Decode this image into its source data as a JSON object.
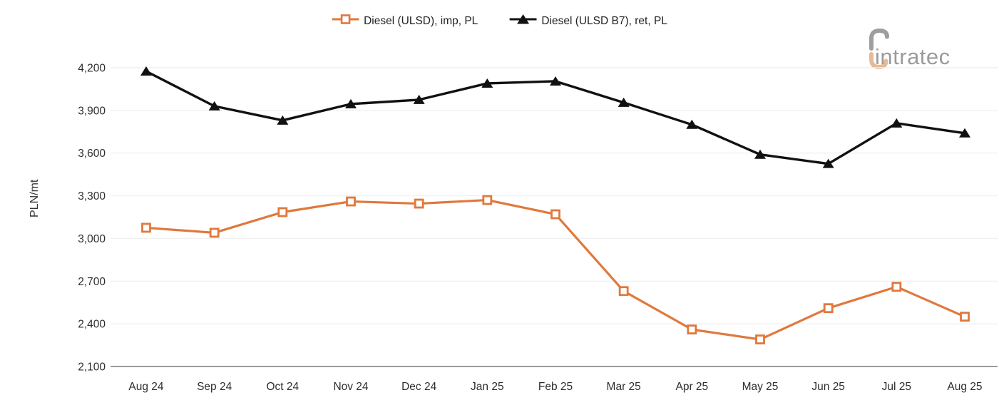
{
  "branding": {
    "logo_text": "intratec"
  },
  "chart_data": {
    "type": "line",
    "title": "",
    "ylabel": "PLN/mt",
    "xlabel": "",
    "ylim": [
      2100,
      4200
    ],
    "ytick_step": 300,
    "grid": "horizontal-light",
    "legend_position": "top-center",
    "categories": [
      "Aug 24",
      "Sep 24",
      "Oct 24",
      "Nov 24",
      "Dec 24",
      "Jan 25",
      "Feb 25",
      "Mar 25",
      "Apr 25",
      "May 25",
      "Jun 25",
      "Jul 25",
      "Aug 25"
    ],
    "series": [
      {
        "name": "Diesel (ULSD), imp, PL",
        "color": "#E0783C",
        "marker": "square-open",
        "values": [
          3075,
          3040,
          3185,
          3260,
          3245,
          3270,
          3170,
          2630,
          2360,
          2290,
          2510,
          2660,
          2450
        ]
      },
      {
        "name": "Diesel (ULSD B7), ret, PL",
        "color": "#111111",
        "marker": "triangle-filled",
        "values": [
          4175,
          3930,
          3830,
          3945,
          3975,
          4090,
          4105,
          3955,
          3800,
          3590,
          3525,
          3810,
          3740
        ]
      }
    ],
    "colors": {
      "gridline": "#F0F0F0",
      "axis_line": "#7A7A7A",
      "tick_text": "#2E2E2E",
      "logo_gray": "#9E9E9E",
      "logo_tan": "#E5BB97"
    }
  }
}
